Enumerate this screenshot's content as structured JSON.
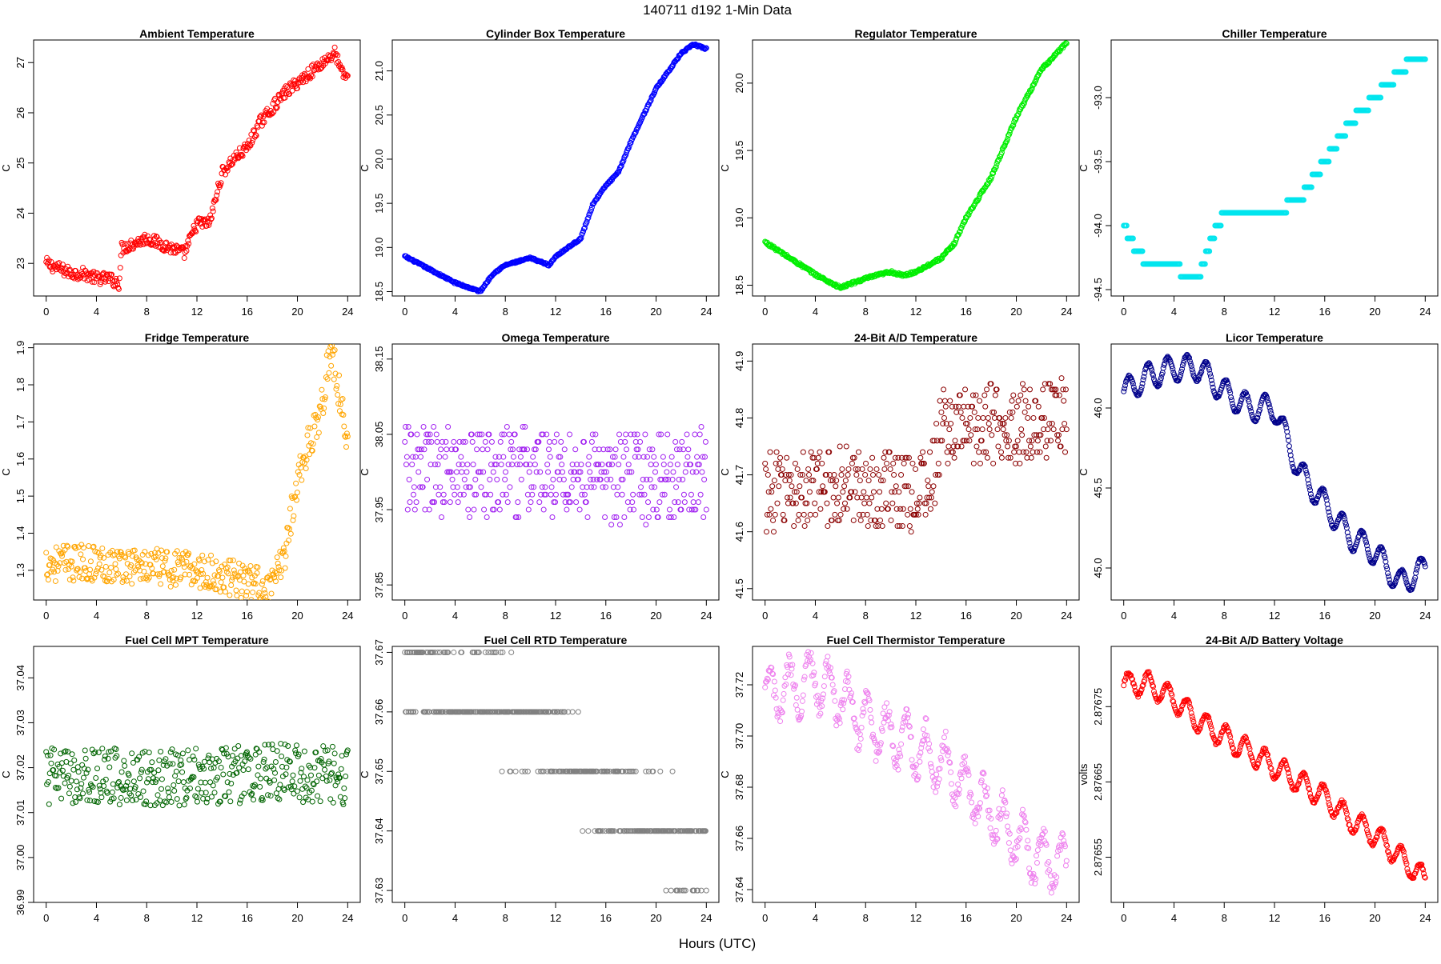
{
  "figure": {
    "title": "140711    d192    1-Min Data",
    "xlabel": "Hours (UTC)"
  },
  "chart_data": [
    {
      "type": "scatter",
      "title": "Ambient Temperature",
      "ylabel": "C",
      "color": "#ff0000",
      "xlim": [
        -1,
        25
      ],
      "ylim": [
        22.35,
        27.45
      ],
      "xticks": [
        "0",
        "4",
        "8",
        "12",
        "16",
        "20",
        "24"
      ],
      "yticks": [
        "23",
        "24",
        "25",
        "26",
        "27"
      ],
      "x": [
        0,
        1,
        2,
        3,
        4,
        5,
        5.8,
        6,
        7,
        8,
        9,
        10,
        11,
        12,
        13,
        14,
        15,
        16,
        17,
        18,
        19,
        20,
        21,
        22,
        23,
        23.5,
        24
      ],
      "y": [
        23.0,
        22.9,
        22.8,
        22.8,
        22.7,
        22.7,
        22.6,
        23.3,
        23.4,
        23.5,
        23.4,
        23.3,
        23.2,
        23.8,
        23.8,
        24.8,
        25.1,
        25.3,
        25.8,
        26.1,
        26.4,
        26.6,
        26.8,
        27.0,
        27.2,
        26.8,
        26.7
      ],
      "noise": 0.12
    },
    {
      "type": "scatter",
      "title": "Cylinder Box Temperature",
      "ylabel": "C",
      "color": "#0000ff",
      "xlim": [
        -1,
        25
      ],
      "ylim": [
        18.45,
        21.35
      ],
      "xticks": [
        "0",
        "4",
        "8",
        "12",
        "16",
        "20",
        "24"
      ],
      "yticks": [
        "18.5",
        "19.0",
        "19.5",
        "20.0",
        "20.5",
        "21.0"
      ],
      "x": [
        0,
        2,
        4,
        6,
        7,
        8,
        10,
        11.5,
        12,
        13,
        14,
        15,
        16,
        17,
        18,
        19,
        20,
        21,
        22,
        23,
        24
      ],
      "y": [
        18.9,
        18.75,
        18.6,
        18.5,
        18.7,
        18.8,
        18.88,
        18.8,
        18.9,
        19.0,
        19.1,
        19.5,
        19.7,
        19.85,
        20.2,
        20.5,
        20.8,
        21.0,
        21.2,
        21.3,
        21.25
      ],
      "noise": 0.01
    },
    {
      "type": "scatter",
      "title": "Regulator Temperature",
      "ylabel": "C",
      "color": "#00ee00",
      "xlim": [
        -1,
        25
      ],
      "ylim": [
        18.42,
        20.32
      ],
      "xticks": [
        "0",
        "4",
        "8",
        "12",
        "16",
        "20",
        "24"
      ],
      "yticks": [
        "18.5",
        "19.0",
        "19.5",
        "20.0"
      ],
      "x": [
        0,
        2,
        4,
        6,
        6.5,
        8,
        10,
        11,
        12,
        13,
        14,
        15,
        16,
        18,
        20,
        22,
        24
      ],
      "y": [
        18.82,
        18.7,
        18.58,
        18.48,
        18.5,
        18.55,
        18.6,
        18.57,
        18.6,
        18.65,
        18.7,
        18.8,
        19.0,
        19.3,
        19.75,
        20.1,
        20.3
      ],
      "noise": 0.01
    },
    {
      "type": "scatter",
      "title": "Chiller Temperature",
      "ylabel": "C",
      "color": "#00e5ee",
      "xlim": [
        -1,
        25
      ],
      "ylim": [
        -94.55,
        -92.55
      ],
      "xticks": [
        "0",
        "4",
        "8",
        "12",
        "16",
        "20",
        "24"
      ],
      "yticks": [
        "-94.5",
        "-94.0",
        "-93.5",
        "-93.0"
      ],
      "x": [
        0,
        1,
        2,
        3,
        4,
        5,
        6,
        7,
        8,
        10,
        12,
        14,
        16,
        18,
        20,
        21,
        22,
        23,
        24
      ],
      "y": [
        -94.0,
        -94.2,
        -94.3,
        -94.3,
        -94.3,
        -94.4,
        -94.4,
        -94.1,
        -93.9,
        -93.9,
        -93.9,
        -93.8,
        -93.5,
        -93.2,
        -93.0,
        -92.9,
        -92.8,
        -92.7,
        -92.7
      ],
      "noise": 0.0,
      "quantize": 0.1
    },
    {
      "type": "scatter",
      "title": "Fridge Temperature",
      "ylabel": "C",
      "color": "#ffa500",
      "xlim": [
        -1,
        25
      ],
      "ylim": [
        1.22,
        1.91
      ],
      "xticks": [
        "0",
        "4",
        "8",
        "12",
        "16",
        "20",
        "24"
      ],
      "yticks": [
        "1.3",
        "1.4",
        "1.5",
        "1.6",
        "1.7",
        "1.8",
        "1.9"
      ],
      "x": [
        0,
        4,
        8,
        12,
        16,
        18,
        19,
        20,
        21,
        22,
        22.5,
        23,
        24
      ],
      "y": [
        1.32,
        1.32,
        1.31,
        1.3,
        1.27,
        1.25,
        1.35,
        1.55,
        1.65,
        1.75,
        1.88,
        1.85,
        1.63
      ],
      "noise": 0.05
    },
    {
      "type": "scatter",
      "title": "Omega Temperature",
      "ylabel": "C",
      "color": "#a020f0",
      "xlim": [
        -1,
        25
      ],
      "ylim": [
        37.83,
        38.17
      ],
      "xticks": [
        "0",
        "4",
        "8",
        "12",
        "16",
        "20",
        "24"
      ],
      "yticks": [
        "37.85",
        "37.95",
        "38.05",
        "38.15"
      ],
      "x": [
        0,
        6,
        12,
        18,
        24
      ],
      "y": [
        38.0,
        38.0,
        38.0,
        37.99,
        38.0
      ],
      "noise": 0.06,
      "quantize": 0.01
    },
    {
      "type": "scatter",
      "title": "24-Bit A/D Temperature",
      "ylabel": "C",
      "color": "#8b0000",
      "xlim": [
        -1,
        25
      ],
      "ylim": [
        41.48,
        41.93
      ],
      "xticks": [
        "0",
        "4",
        "8",
        "12",
        "16",
        "20",
        "24"
      ],
      "yticks": [
        "41.5",
        "41.6",
        "41.7",
        "41.8",
        "41.9"
      ],
      "x": [
        0,
        6,
        12,
        13.5,
        14,
        18,
        24
      ],
      "y": [
        41.67,
        41.68,
        41.67,
        41.7,
        41.78,
        41.79,
        41.8
      ],
      "noise": 0.07,
      "quantize": 0.01
    },
    {
      "type": "scatter",
      "title": "Licor Temperature",
      "ylabel": "C",
      "color": "#00008b",
      "xlim": [
        -1,
        25
      ],
      "ylim": [
        44.8,
        46.4
      ],
      "xticks": [
        "0",
        "4",
        "8",
        "12",
        "16",
        "20",
        "24"
      ],
      "yticks": [
        "45.0",
        "45.5",
        "46.0"
      ],
      "x": [
        0,
        2,
        4,
        6,
        8,
        10,
        12,
        14,
        16,
        18,
        20,
        22,
        24
      ],
      "y": [
        46.1,
        46.2,
        46.25,
        46.25,
        46.1,
        46.0,
        46.0,
        45.6,
        45.4,
        45.2,
        45.1,
        44.9,
        45.0
      ],
      "noise": 0.005,
      "wave": 0.08
    },
    {
      "type": "scatter",
      "title": "Fuel Cell MPT Temperature",
      "ylabel": "C",
      "color": "#006400",
      "xlim": [
        -1,
        25
      ],
      "ylim": [
        36.99,
        37.047
      ],
      "xticks": [
        "0",
        "4",
        "8",
        "12",
        "16",
        "20",
        "24"
      ],
      "yticks": [
        "36.99",
        "37.00",
        "37.01",
        "37.02",
        "37.03",
        "37.04"
      ],
      "x": [
        0,
        6,
        12,
        18,
        24
      ],
      "y": [
        37.018,
        37.018,
        37.018,
        37.019,
        37.018
      ],
      "noise": 0.0065
    },
    {
      "type": "scatter",
      "title": "Fuel Cell RTD Temperature",
      "ylabel": "C",
      "color": "#808080",
      "xlim": [
        -1,
        25
      ],
      "ylim": [
        37.628,
        37.671
      ],
      "xticks": [
        "0",
        "4",
        "8",
        "12",
        "16",
        "20",
        "24"
      ],
      "yticks": [
        "37.63",
        "37.64",
        "37.65",
        "37.66",
        "37.67"
      ],
      "x": [
        0,
        6,
        12,
        15,
        18,
        24
      ],
      "y": [
        37.665,
        37.662,
        37.657,
        37.648,
        37.642,
        37.638
      ],
      "noise": 0.006,
      "quantize": 0.01
    },
    {
      "type": "scatter",
      "title": "Fuel Cell Thermistor Temperature",
      "ylabel": "C",
      "color": "#ee82ee",
      "xlim": [
        -1,
        25
      ],
      "ylim": [
        37.635,
        37.735
      ],
      "xticks": [
        "0",
        "4",
        "8",
        "12",
        "16",
        "20",
        "24"
      ],
      "yticks": [
        "37.64",
        "37.66",
        "37.68",
        "37.70",
        "37.72"
      ],
      "x": [
        0,
        4,
        6,
        8,
        10,
        12,
        14,
        16,
        18,
        20,
        22,
        24
      ],
      "y": [
        37.715,
        37.722,
        37.715,
        37.705,
        37.7,
        37.695,
        37.69,
        37.68,
        37.67,
        37.66,
        37.652,
        37.65
      ],
      "noise": 0.004,
      "wave": 0.01
    },
    {
      "type": "scatter",
      "title": "24-Bit A/D Battery Voltage",
      "ylabel": "volts",
      "color": "#ff0000",
      "xlim": [
        -1,
        25
      ],
      "ylim": [
        2.87649,
        2.87683
      ],
      "xticks": [
        "0",
        "4",
        "8",
        "12",
        "16",
        "20",
        "24"
      ],
      "yticks": [
        "2.87655",
        "2.87665",
        "2.87675"
      ],
      "x": [
        0,
        2,
        4,
        6,
        8,
        10,
        12,
        14,
        16,
        18,
        20,
        22,
        24
      ],
      "y": [
        2.87678,
        2.87678,
        2.87676,
        2.87673,
        2.87671,
        2.87669,
        2.87667,
        2.87665,
        2.87663,
        2.8766,
        2.87658,
        2.87655,
        2.87652
      ],
      "noise": 2e-06,
      "wave": 1.5e-05
    }
  ]
}
